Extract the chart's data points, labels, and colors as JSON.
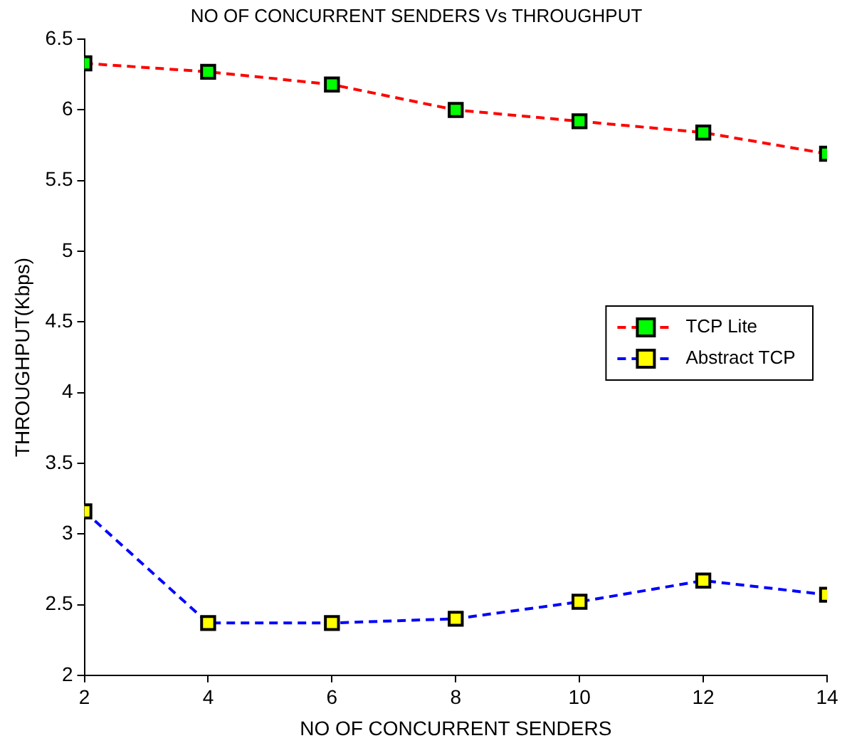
{
  "chart_data": {
    "type": "line",
    "title": "NO OF CONCURRENT SENDERS Vs THROUGHPUT",
    "xlabel": "NO OF CONCURRENT SENDERS",
    "ylabel": "THROUGHPUT(Kbps)",
    "x": [
      2,
      4,
      6,
      8,
      10,
      12,
      14
    ],
    "series": [
      {
        "name": "TCP Lite",
        "color": "#ff0000",
        "colors": [
          "#00ff00",
          "#00ff00",
          "#00ff00",
          "#00ff00",
          "#00ff00",
          "#00ff00",
          "#00ff00"
        ],
        "values": [
          6.33,
          6.27,
          6.18,
          6.0,
          5.92,
          5.84,
          5.69
        ]
      },
      {
        "name": "Abstract TCP",
        "color": "#0000ff",
        "colors": [
          "#ffff00",
          "#ffff00",
          "#ffff00",
          "#ffff00",
          "#ffff00",
          "#ffff00",
          "#ffff00"
        ],
        "values": [
          3.16,
          2.37,
          2.37,
          2.4,
          2.52,
          2.67,
          2.57
        ]
      }
    ],
    "xlim": [
      2,
      14
    ],
    "xticks": [
      2,
      4,
      6,
      8,
      10,
      12,
      14
    ],
    "ylim": [
      2,
      6.5
    ],
    "yticks": [
      2,
      2.5,
      3,
      3.5,
      4,
      4.5,
      5,
      5.5,
      6,
      6.5
    ],
    "grid": false,
    "legend": "right",
    "marker": "square",
    "line_style": "dashed"
  }
}
